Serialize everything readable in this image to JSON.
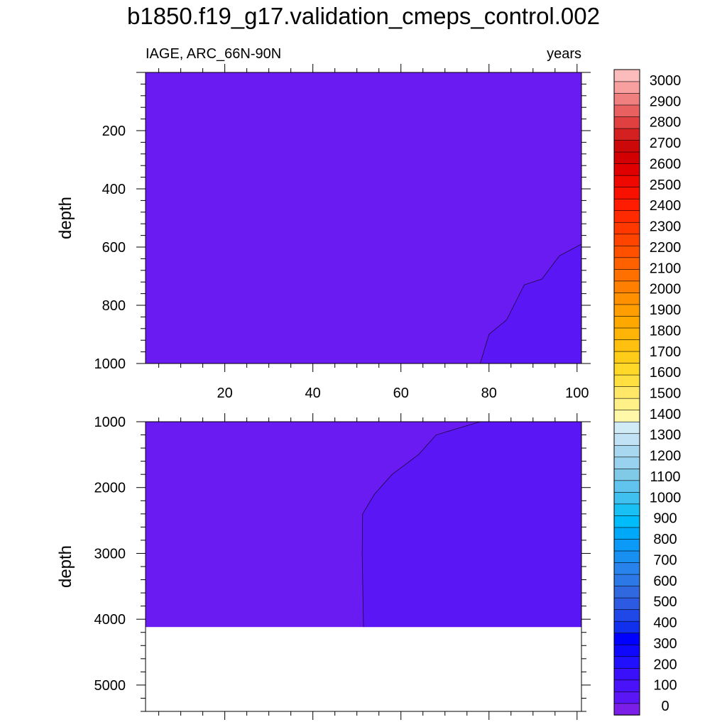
{
  "title": "b1850.f19_g17.validation_cmeps_control.002",
  "chart_data": [
    {
      "type": "contour",
      "panel": "upper",
      "left_label": "IAGE, ARC_66N-90N",
      "right_label": "years",
      "ylabel": "depth",
      "ylim": [
        0,
        1000
      ],
      "y_reversed": true,
      "xlim": [
        2,
        101
      ],
      "x_ticks": [
        20,
        40,
        60,
        80,
        100
      ],
      "y_ticks": [
        200,
        400,
        600,
        800,
        1000
      ],
      "background_fill": "#6a1bf2",
      "regions": [
        {
          "name": "age-100-to-200",
          "fill": "#5a16f5",
          "contour_level": 100,
          "boundary": [
            [
              78,
              1000
            ],
            [
              80,
              900
            ],
            [
              84,
              850
            ],
            [
              88,
              730
            ],
            [
              92,
              710
            ],
            [
              96,
              630
            ],
            [
              101,
              590
            ]
          ]
        }
      ]
    },
    {
      "type": "contour",
      "panel": "lower",
      "ylabel": "depth",
      "ylim": [
        1000,
        5400
      ],
      "y_reversed": true,
      "xlim": [
        2,
        101
      ],
      "x_ticks": [
        20,
        40,
        60,
        80,
        100
      ],
      "y_ticks": [
        1000,
        2000,
        3000,
        4000,
        5000
      ],
      "background_fill": "#6a1bf2",
      "no_data_below": 4120,
      "regions": [
        {
          "name": "age-100-to-200",
          "fill": "#5a16f5",
          "contour_level": 100,
          "boundary": [
            [
              51.5,
              4120
            ],
            [
              51.2,
              3000
            ],
            [
              51.3,
              2400
            ],
            [
              54,
              2100
            ],
            [
              58,
              1800
            ],
            [
              61,
              1650
            ],
            [
              64,
              1500
            ],
            [
              68,
              1200
            ],
            [
              73,
              1100
            ],
            [
              78,
              1000
            ]
          ]
        }
      ]
    }
  ],
  "colorbar": {
    "labels": [
      "0",
      "100",
      "200",
      "300",
      "400",
      "500",
      "600",
      "700",
      "800",
      "900",
      "1000",
      "1100",
      "1200",
      "1300",
      "1400",
      "1500",
      "1600",
      "1700",
      "1800",
      "1900",
      "2000",
      "2100",
      "2200",
      "2300",
      "2400",
      "2500",
      "2600",
      "2700",
      "2800",
      "2900",
      "3000"
    ],
    "colors": [
      "#7b1fe8",
      "#5a16f5",
      "#4a12f8",
      "#3a10fa",
      "#2010fc",
      "#1008fd",
      "#0000ff",
      "#1030ee",
      "#2048e8",
      "#2c5ae2",
      "#3068e0",
      "#2c78e6",
      "#2884ec",
      "#1890f2",
      "#0c9af8",
      "#00a8fa",
      "#00bcfa",
      "#18c0f4",
      "#40c0ee",
      "#60c4ee",
      "#80cae8",
      "#98d2ee",
      "#a8d8f0",
      "#c0e2f4",
      "#d0eaf6",
      "#fff8a8",
      "#fff088",
      "#ffe868",
      "#ffe040",
      "#ffd828",
      "#ffcc1a",
      "#ffc010",
      "#ffb408",
      "#ffa800",
      "#ff9e00",
      "#ff9000",
      "#ff8000",
      "#ff7000",
      "#ff6000",
      "#ff5000",
      "#ff4400",
      "#ff3800",
      "#ff2a00",
      "#ff1c00",
      "#f81000",
      "#ee0800",
      "#e00000",
      "#d20000",
      "#cc0808",
      "#d42020",
      "#e04040",
      "#e86060",
      "#f08080",
      "#f8a0a0",
      "#fcbcbc"
    ]
  }
}
